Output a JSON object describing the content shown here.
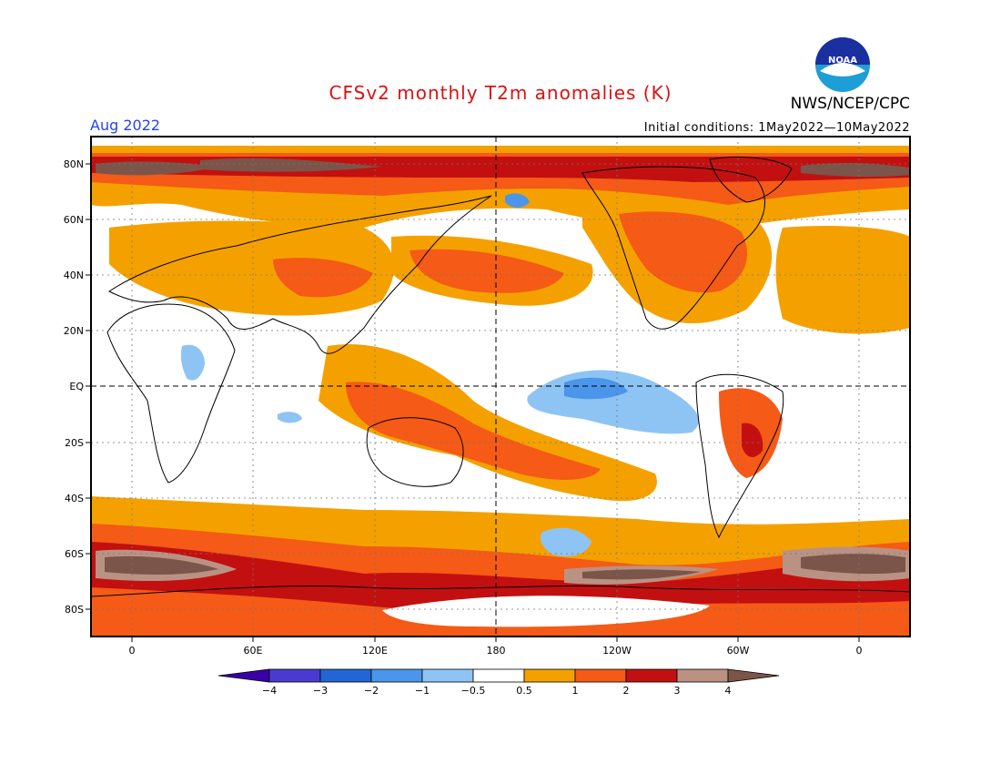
{
  "title": "CFSv2 monthly T2m anomalies (K)",
  "month": "Aug 2022",
  "initial_conditions": "Initial conditions: 1May2022—10May2022",
  "organization": "NWS/NCEP/CPC",
  "logo_text": "NOAA",
  "map": {
    "lon_labels": [
      "0",
      "60E",
      "120E",
      "180",
      "120W",
      "60W",
      "0"
    ],
    "lat_labels": [
      "80N",
      "60N",
      "40N",
      "20N",
      "EQ",
      "20S",
      "40S",
      "60S",
      "80S"
    ]
  },
  "colorbar": {
    "tick_labels": [
      "−4",
      "−3",
      "−2",
      "−1",
      "−0.5",
      "0.5",
      "1",
      "2",
      "3",
      "4"
    ],
    "colors": [
      "#3a00a8",
      "#4a3bd0",
      "#2266d6",
      "#4b96ea",
      "#8ec4f4",
      "#ffffff",
      "#f4a100",
      "#f55a16",
      "#c21010",
      "#ba9283",
      "#7b5549"
    ]
  },
  "colors": {
    "warm_1": "#f4a100",
    "warm_2": "#f55a16",
    "warm_3": "#c21010",
    "warm_4": "#ba9283",
    "warm_5": "#7b5549",
    "cool_1": "#8ec4f4",
    "cool_2": "#4b96ea",
    "title": "#dd1111",
    "month": "#2244ee"
  }
}
